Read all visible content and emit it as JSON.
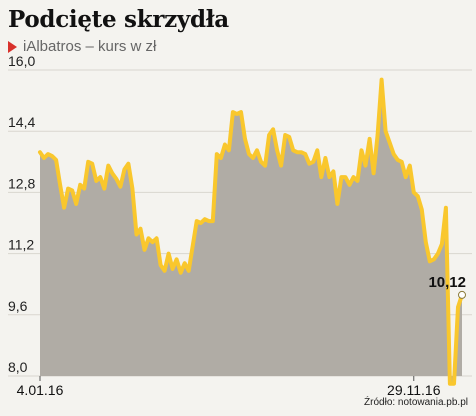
{
  "chart_data": {
    "type": "area",
    "title": "Podcięte skrzydła",
    "subtitle": "iAlbatros – kurs w zł",
    "source": "Źródło: notowania.pb.pl",
    "accent_color": "#f9c72d",
    "fill_color": "#b0aca5",
    "ylim": [
      8.0,
      16.0
    ],
    "yticks": [
      {
        "value": 16.0,
        "label": "16,0"
      },
      {
        "value": 14.4,
        "label": "14,4"
      },
      {
        "value": 12.8,
        "label": "12,8"
      },
      {
        "value": 11.2,
        "label": "11,2"
      },
      {
        "value": 9.6,
        "label": "9,6"
      },
      {
        "value": 8.0,
        "label": "8,0"
      }
    ],
    "xlabels": [
      {
        "index": 0,
        "label": "4.01.16"
      },
      {
        "index": 93,
        "label": "29.11.16"
      }
    ],
    "last_value_label": "10,12",
    "grid": true,
    "values": [
      13.85,
      13.7,
      13.8,
      13.75,
      13.65,
      13.0,
      12.4,
      12.9,
      12.85,
      12.5,
      13.0,
      12.9,
      13.6,
      13.55,
      13.1,
      13.2,
      12.9,
      13.5,
      13.3,
      13.15,
      12.95,
      13.4,
      13.55,
      12.9,
      11.7,
      11.85,
      11.3,
      11.6,
      11.5,
      11.6,
      10.9,
      10.75,
      11.2,
      10.8,
      11.05,
      10.7,
      10.95,
      10.75,
      11.4,
      12.05,
      12.0,
      12.1,
      12.05,
      12.05,
      13.8,
      13.7,
      14.05,
      13.9,
      14.9,
      14.85,
      14.9,
      14.2,
      13.8,
      13.7,
      13.9,
      13.6,
      13.5,
      14.3,
      14.45,
      13.9,
      13.5,
      14.3,
      14.25,
      13.9,
      13.85,
      13.85,
      13.8,
      13.55,
      13.6,
      13.9,
      13.2,
      13.7,
      13.2,
      13.35,
      12.5,
      13.2,
      13.2,
      13.0,
      13.2,
      13.1,
      13.9,
      13.5,
      14.2,
      13.3,
      14.3,
      15.75,
      14.4,
      14.1,
      13.8,
      13.65,
      13.6,
      13.2,
      13.5,
      12.8,
      12.7,
      12.35,
      11.5,
      11.0,
      11.05,
      11.2,
      11.45,
      12.4,
      7.8,
      7.8,
      9.8,
      10.12
    ]
  }
}
